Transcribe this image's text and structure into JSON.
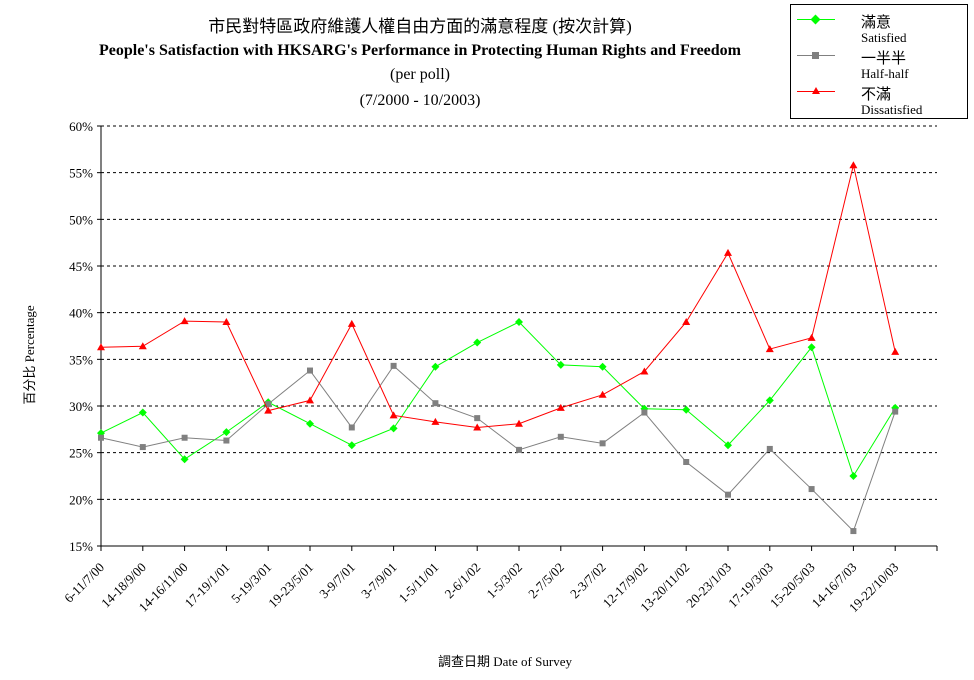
{
  "chart_data": {
    "type": "line",
    "title": "市民對特區政府維護人權自由方面的滿意程度 (按次計算)",
    "subtitle": "People's Satisfaction with HKSARG's Performance in Protecting Human Rights and Freedom",
    "subtitle2": "(per poll)",
    "subtitle3": "(7/2000 - 10/2003)",
    "xlabel": "調查日期 Date of Survey",
    "ylabel": "百分比 Percentage",
    "ylim": [
      15,
      60
    ],
    "yticks": [
      "15%",
      "20%",
      "25%",
      "30%",
      "35%",
      "40%",
      "45%",
      "50%",
      "55%",
      "60%"
    ],
    "grid": "dashed horizontal",
    "legend_position": "top-right",
    "categories": [
      "6-11/7/00",
      "14-18/9/00",
      "14-16/11/00",
      "17-19/1/01",
      "5-19/3/01",
      "19-23/5/01",
      "3-9/7/01",
      "3-7/9/01",
      "1-5/11/01",
      "2-6/1/02",
      "1-5/3/02",
      "2-7/5/02",
      "2-3/7/02",
      "12-17/9/02",
      "13-20/11/02",
      "20-23/1/03",
      "17-19/3/03",
      "15-20/5/03",
      "14-16/7/03",
      "19-22/10/03"
    ],
    "series": [
      {
        "name": "滿意",
        "name_en": "Satisfied",
        "color": "#00ff00",
        "marker": "diamond",
        "values": [
          27.1,
          29.3,
          24.3,
          27.2,
          30.4,
          28.1,
          25.8,
          27.6,
          34.2,
          36.8,
          39.0,
          34.4,
          34.2,
          29.7,
          29.6,
          25.8,
          30.6,
          36.3,
          22.5,
          29.8
        ]
      },
      {
        "name": "一半半",
        "name_en": "Half-half",
        "color": "#808080",
        "marker": "square",
        "values": [
          26.6,
          25.6,
          26.6,
          26.3,
          30.2,
          33.8,
          27.7,
          34.3,
          30.3,
          28.7,
          25.3,
          26.7,
          26.0,
          29.3,
          24.0,
          20.5,
          25.4,
          21.1,
          16.6,
          29.4
        ]
      },
      {
        "name": "不滿",
        "name_en": "Dissatisfied",
        "color": "#ff0000",
        "marker": "triangle",
        "values": [
          36.3,
          36.4,
          39.1,
          39.0,
          29.5,
          30.6,
          38.8,
          29.0,
          28.3,
          27.7,
          28.1,
          29.8,
          31.2,
          33.7,
          39.0,
          46.4,
          36.1,
          37.3,
          55.8,
          35.8
        ]
      }
    ]
  }
}
